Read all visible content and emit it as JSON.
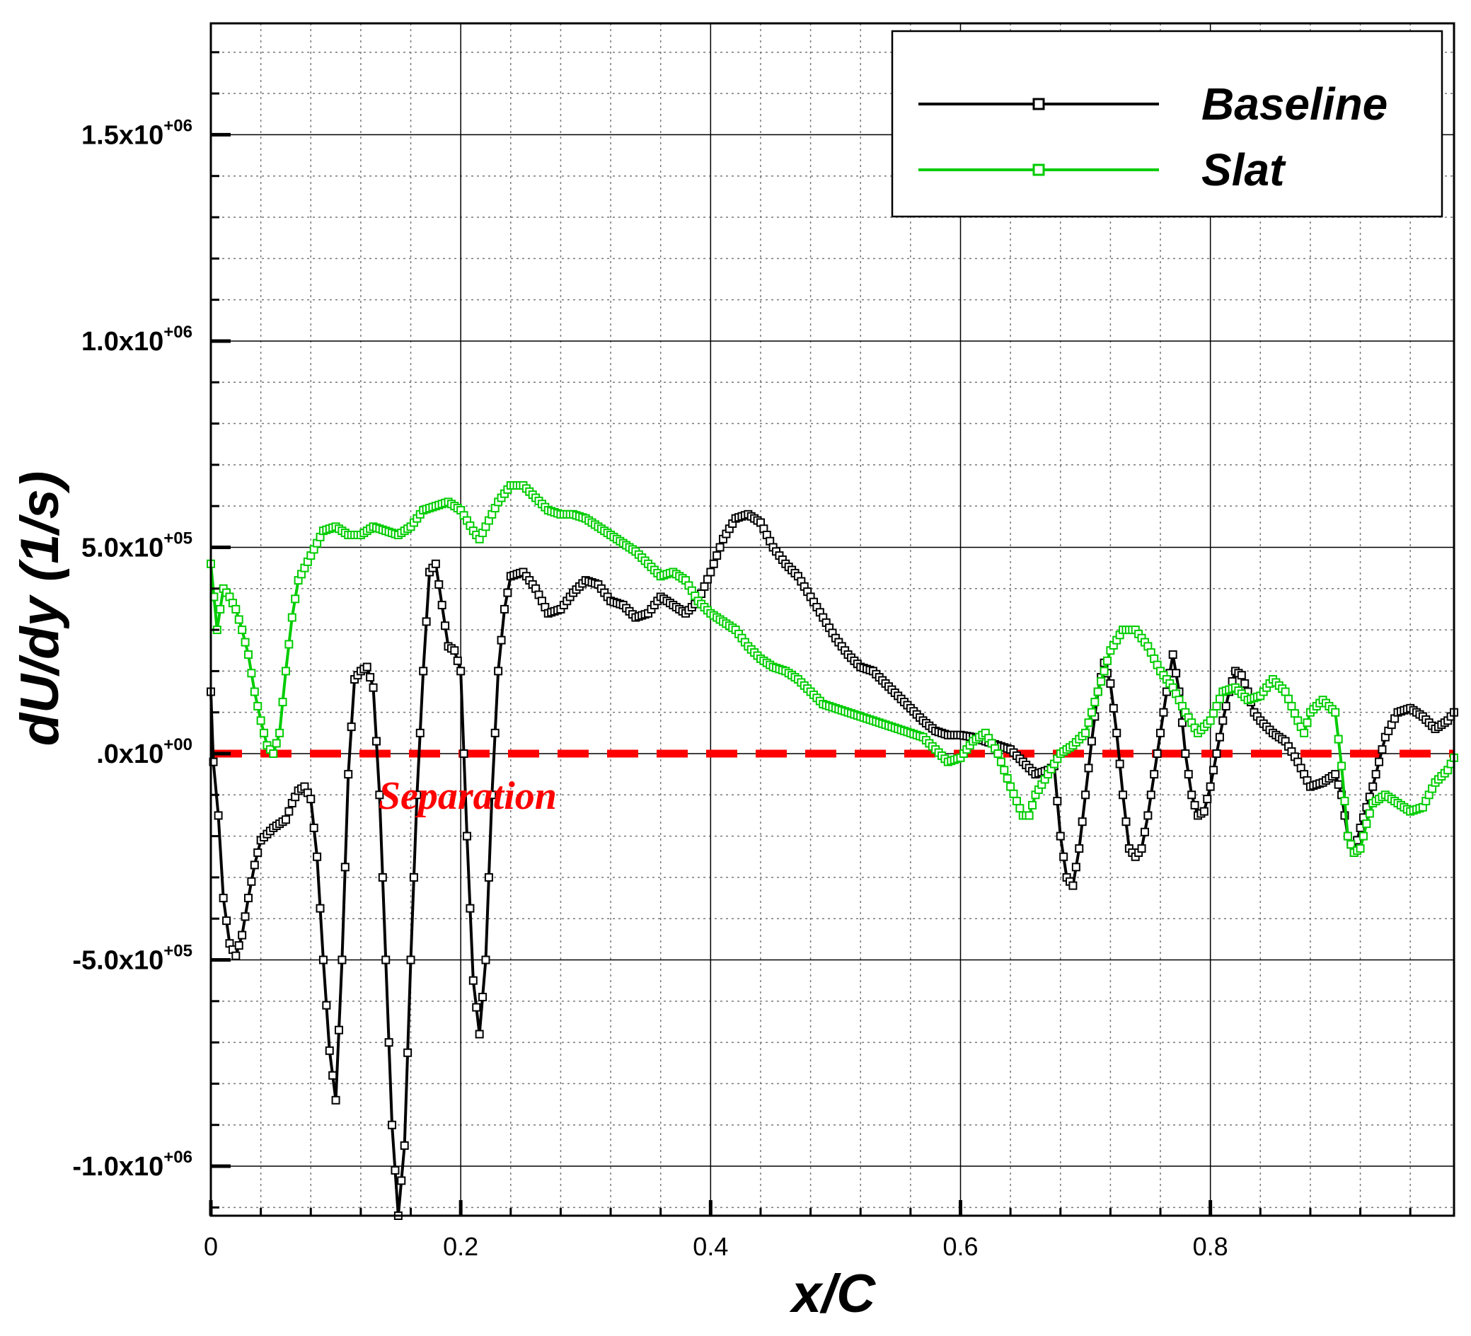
{
  "chart_data": {
    "type": "line",
    "xlabel": "x/C",
    "ylabel": "dU/dy (1/s)",
    "xlim": [
      0,
      0.995
    ],
    "ylim": [
      -1120000,
      1770000
    ],
    "x_ticks": [
      0,
      0.2,
      0.4,
      0.6,
      0.8
    ],
    "x_tick_labels": [
      "0",
      "0.2",
      "0.4",
      "0.6",
      "0.8"
    ],
    "y_ticks": [
      -1000000,
      -500000,
      0,
      500000,
      1000000,
      1500000
    ],
    "y_tick_labels": [
      {
        "mantissa": "-1.0x10",
        "exp": "+06"
      },
      {
        "mantissa": "-5.0x10",
        "exp": "+05"
      },
      {
        "mantissa": ".0x10",
        "exp": "+00"
      },
      {
        "mantissa": "5.0x10",
        "exp": "+05"
      },
      {
        "mantissa": "1.0x10",
        "exp": "+06"
      },
      {
        "mantissa": "1.5x10",
        "exp": "+06"
      }
    ],
    "grid": true,
    "legend_position": "top-right",
    "annotation": {
      "text": "Separation",
      "color": "#ff0000",
      "y": 0
    },
    "series": [
      {
        "name": "Baseline",
        "color": "#000000",
        "marker": "open-square",
        "points": [
          [
            0.0,
            150000
          ],
          [
            0.002,
            -20000
          ],
          [
            0.006,
            -150000
          ],
          [
            0.01,
            -350000
          ],
          [
            0.015,
            -460000
          ],
          [
            0.02,
            -490000
          ],
          [
            0.025,
            -440000
          ],
          [
            0.03,
            -350000
          ],
          [
            0.035,
            -270000
          ],
          [
            0.04,
            -210000
          ],
          [
            0.05,
            -180000
          ],
          [
            0.06,
            -160000
          ],
          [
            0.065,
            -120000
          ],
          [
            0.07,
            -90000
          ],
          [
            0.075,
            -80000
          ],
          [
            0.08,
            -110000
          ],
          [
            0.085,
            -250000
          ],
          [
            0.09,
            -500000
          ],
          [
            0.095,
            -720000
          ],
          [
            0.1,
            -840000
          ],
          [
            0.105,
            -500000
          ],
          [
            0.11,
            -50000
          ],
          [
            0.115,
            180000
          ],
          [
            0.12,
            200000
          ],
          [
            0.125,
            210000
          ],
          [
            0.13,
            160000
          ],
          [
            0.135,
            -100000
          ],
          [
            0.14,
            -500000
          ],
          [
            0.145,
            -900000
          ],
          [
            0.15,
            -1120000
          ],
          [
            0.155,
            -950000
          ],
          [
            0.16,
            -500000
          ],
          [
            0.165,
            -100000
          ],
          [
            0.17,
            200000
          ],
          [
            0.175,
            440000
          ],
          [
            0.18,
            460000
          ],
          [
            0.185,
            360000
          ],
          [
            0.19,
            260000
          ],
          [
            0.195,
            250000
          ],
          [
            0.2,
            200000
          ],
          [
            0.205,
            -200000
          ],
          [
            0.21,
            -550000
          ],
          [
            0.215,
            -680000
          ],
          [
            0.22,
            -500000
          ],
          [
            0.225,
            -100000
          ],
          [
            0.23,
            200000
          ],
          [
            0.235,
            350000
          ],
          [
            0.24,
            430000
          ],
          [
            0.25,
            440000
          ],
          [
            0.26,
            400000
          ],
          [
            0.27,
            340000
          ],
          [
            0.28,
            350000
          ],
          [
            0.29,
            390000
          ],
          [
            0.3,
            420000
          ],
          [
            0.31,
            410000
          ],
          [
            0.32,
            370000
          ],
          [
            0.33,
            360000
          ],
          [
            0.34,
            330000
          ],
          [
            0.35,
            340000
          ],
          [
            0.36,
            380000
          ],
          [
            0.37,
            360000
          ],
          [
            0.38,
            340000
          ],
          [
            0.39,
            370000
          ],
          [
            0.4,
            440000
          ],
          [
            0.41,
            520000
          ],
          [
            0.42,
            570000
          ],
          [
            0.43,
            580000
          ],
          [
            0.44,
            560000
          ],
          [
            0.45,
            500000
          ],
          [
            0.46,
            460000
          ],
          [
            0.47,
            430000
          ],
          [
            0.48,
            380000
          ],
          [
            0.49,
            330000
          ],
          [
            0.5,
            280000
          ],
          [
            0.51,
            240000
          ],
          [
            0.52,
            210000
          ],
          [
            0.53,
            200000
          ],
          [
            0.54,
            170000
          ],
          [
            0.55,
            140000
          ],
          [
            0.56,
            110000
          ],
          [
            0.57,
            80000
          ],
          [
            0.58,
            55000
          ],
          [
            0.59,
            45000
          ],
          [
            0.6,
            45000
          ],
          [
            0.61,
            40000
          ],
          [
            0.62,
            30000
          ],
          [
            0.63,
            20000
          ],
          [
            0.64,
            10000
          ],
          [
            0.65,
            -20000
          ],
          [
            0.66,
            -50000
          ],
          [
            0.67,
            -40000
          ],
          [
            0.675,
            -30000
          ],
          [
            0.68,
            -200000
          ],
          [
            0.685,
            -300000
          ],
          [
            0.69,
            -320000
          ],
          [
            0.695,
            -230000
          ],
          [
            0.7,
            -100000
          ],
          [
            0.705,
            30000
          ],
          [
            0.71,
            150000
          ],
          [
            0.715,
            220000
          ],
          [
            0.72,
            170000
          ],
          [
            0.725,
            50000
          ],
          [
            0.73,
            -100000
          ],
          [
            0.735,
            -230000
          ],
          [
            0.74,
            -250000
          ],
          [
            0.745,
            -230000
          ],
          [
            0.75,
            -150000
          ],
          [
            0.755,
            -50000
          ],
          [
            0.76,
            50000
          ],
          [
            0.765,
            150000
          ],
          [
            0.77,
            240000
          ],
          [
            0.775,
            150000
          ],
          [
            0.78,
            0
          ],
          [
            0.785,
            -100000
          ],
          [
            0.79,
            -150000
          ],
          [
            0.795,
            -140000
          ],
          [
            0.8,
            -80000
          ],
          [
            0.805,
            0
          ],
          [
            0.81,
            80000
          ],
          [
            0.815,
            150000
          ],
          [
            0.82,
            200000
          ],
          [
            0.825,
            190000
          ],
          [
            0.83,
            150000
          ],
          [
            0.835,
            100000
          ],
          [
            0.84,
            80000
          ],
          [
            0.85,
            50000
          ],
          [
            0.86,
            30000
          ],
          [
            0.87,
            -20000
          ],
          [
            0.88,
            -80000
          ],
          [
            0.89,
            -70000
          ],
          [
            0.9,
            -50000
          ],
          [
            0.905,
            -100000
          ],
          [
            0.91,
            -200000
          ],
          [
            0.915,
            -240000
          ],
          [
            0.92,
            -180000
          ],
          [
            0.93,
            -80000
          ],
          [
            0.94,
            40000
          ],
          [
            0.95,
            100000
          ],
          [
            0.96,
            110000
          ],
          [
            0.97,
            90000
          ],
          [
            0.98,
            60000
          ],
          [
            0.99,
            80000
          ],
          [
            0.995,
            100000
          ]
        ]
      },
      {
        "name": "Slat",
        "color": "#00cc00",
        "marker": "open-square",
        "points": [
          [
            0.0,
            460000
          ],
          [
            0.005,
            300000
          ],
          [
            0.01,
            400000
          ],
          [
            0.015,
            380000
          ],
          [
            0.02,
            350000
          ],
          [
            0.025,
            300000
          ],
          [
            0.03,
            240000
          ],
          [
            0.035,
            150000
          ],
          [
            0.04,
            80000
          ],
          [
            0.045,
            20000
          ],
          [
            0.05,
            0
          ],
          [
            0.055,
            50000
          ],
          [
            0.06,
            200000
          ],
          [
            0.065,
            330000
          ],
          [
            0.07,
            420000
          ],
          [
            0.08,
            480000
          ],
          [
            0.09,
            540000
          ],
          [
            0.1,
            550000
          ],
          [
            0.11,
            530000
          ],
          [
            0.12,
            530000
          ],
          [
            0.13,
            550000
          ],
          [
            0.14,
            540000
          ],
          [
            0.15,
            530000
          ],
          [
            0.16,
            550000
          ],
          [
            0.17,
            590000
          ],
          [
            0.18,
            600000
          ],
          [
            0.19,
            610000
          ],
          [
            0.2,
            590000
          ],
          [
            0.21,
            540000
          ],
          [
            0.215,
            520000
          ],
          [
            0.22,
            550000
          ],
          [
            0.23,
            610000
          ],
          [
            0.24,
            650000
          ],
          [
            0.25,
            650000
          ],
          [
            0.26,
            620000
          ],
          [
            0.27,
            590000
          ],
          [
            0.28,
            580000
          ],
          [
            0.29,
            580000
          ],
          [
            0.3,
            570000
          ],
          [
            0.31,
            550000
          ],
          [
            0.32,
            530000
          ],
          [
            0.33,
            510000
          ],
          [
            0.34,
            490000
          ],
          [
            0.35,
            460000
          ],
          [
            0.36,
            430000
          ],
          [
            0.37,
            440000
          ],
          [
            0.38,
            420000
          ],
          [
            0.39,
            370000
          ],
          [
            0.4,
            340000
          ],
          [
            0.41,
            320000
          ],
          [
            0.42,
            300000
          ],
          [
            0.43,
            260000
          ],
          [
            0.44,
            230000
          ],
          [
            0.45,
            210000
          ],
          [
            0.46,
            200000
          ],
          [
            0.47,
            180000
          ],
          [
            0.48,
            150000
          ],
          [
            0.49,
            120000
          ],
          [
            0.5,
            110000
          ],
          [
            0.51,
            100000
          ],
          [
            0.52,
            90000
          ],
          [
            0.53,
            80000
          ],
          [
            0.54,
            70000
          ],
          [
            0.55,
            60000
          ],
          [
            0.56,
            50000
          ],
          [
            0.57,
            40000
          ],
          [
            0.58,
            10000
          ],
          [
            0.59,
            -20000
          ],
          [
            0.6,
            -10000
          ],
          [
            0.61,
            30000
          ],
          [
            0.62,
            50000
          ],
          [
            0.63,
            0
          ],
          [
            0.64,
            -80000
          ],
          [
            0.65,
            -150000
          ],
          [
            0.655,
            -150000
          ],
          [
            0.66,
            -100000
          ],
          [
            0.67,
            -50000
          ],
          [
            0.68,
            0
          ],
          [
            0.69,
            20000
          ],
          [
            0.7,
            50000
          ],
          [
            0.71,
            150000
          ],
          [
            0.72,
            250000
          ],
          [
            0.73,
            300000
          ],
          [
            0.74,
            300000
          ],
          [
            0.75,
            260000
          ],
          [
            0.76,
            200000
          ],
          [
            0.77,
            160000
          ],
          [
            0.78,
            100000
          ],
          [
            0.79,
            50000
          ],
          [
            0.8,
            80000
          ],
          [
            0.81,
            150000
          ],
          [
            0.82,
            160000
          ],
          [
            0.83,
            130000
          ],
          [
            0.84,
            140000
          ],
          [
            0.85,
            180000
          ],
          [
            0.86,
            150000
          ],
          [
            0.87,
            80000
          ],
          [
            0.875,
            50000
          ],
          [
            0.88,
            100000
          ],
          [
            0.89,
            130000
          ],
          [
            0.9,
            100000
          ],
          [
            0.905,
            -30000
          ],
          [
            0.91,
            -200000
          ],
          [
            0.915,
            -240000
          ],
          [
            0.92,
            -230000
          ],
          [
            0.925,
            -170000
          ],
          [
            0.93,
            -120000
          ],
          [
            0.94,
            -100000
          ],
          [
            0.95,
            -120000
          ],
          [
            0.96,
            -140000
          ],
          [
            0.97,
            -130000
          ],
          [
            0.98,
            -70000
          ],
          [
            0.99,
            -40000
          ],
          [
            0.995,
            -10000
          ]
        ]
      }
    ]
  }
}
